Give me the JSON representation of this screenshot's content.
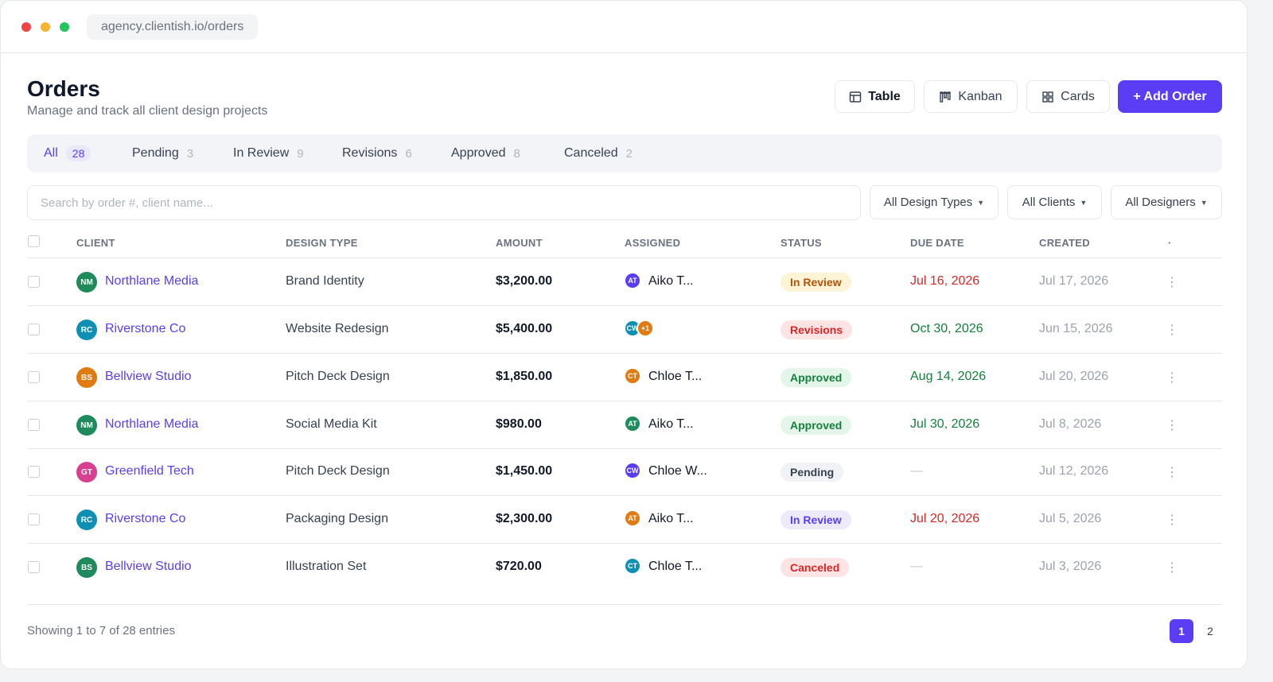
{
  "browser": {
    "url": "agency.clientish.io/orders"
  },
  "header": {
    "title": "Orders",
    "subtitle": "Manage and track all client design projects",
    "views": [
      {
        "label": "Table",
        "icon": "table-icon",
        "active": true
      },
      {
        "label": "Kanban",
        "icon": "kanban-icon",
        "active": false
      },
      {
        "label": "Cards",
        "icon": "grid-icon",
        "active": false
      }
    ],
    "add_label": "+ Add Order"
  },
  "tabs": [
    {
      "label": "All",
      "count": "28",
      "active": true
    },
    {
      "label": "Pending",
      "count": "3"
    },
    {
      "label": "In Review",
      "count": "9"
    },
    {
      "label": "Revisions",
      "count": "6"
    },
    {
      "label": "Approved",
      "count": "8"
    },
    {
      "label": "Canceled",
      "count": "2"
    }
  ],
  "search": {
    "placeholder": "Search by order #, client name...",
    "value": ""
  },
  "filters": [
    "All Design Types",
    "All Clients",
    "All Designers"
  ],
  "table": {
    "columns": [
      "CLIENT",
      "DESIGN TYPE",
      "AMOUNT",
      "ASSIGNED",
      "STATUS",
      "DUE DATE",
      "CREATED"
    ],
    "more_column": "·",
    "rows": [
      {
        "initials": "NM",
        "client": "Northlane Media",
        "design_type": "Brand Identity",
        "amount": "$3,200.00",
        "assignee_initials": "AT",
        "assignee": "Aiko T...",
        "status": "In Review",
        "due": "Jul 16, 2026",
        "created": "Jul 17, 2026"
      },
      {
        "initials": "RC",
        "client": "Riverstone Co",
        "design_type": "Website Redesign",
        "amount": "$5,400.00",
        "assignee_initials": "CW",
        "extra_assignees": "+1",
        "assignee": "",
        "status": "Revisions",
        "due": "Oct 30, 2026",
        "created": "Jun 15, 2026"
      },
      {
        "initials": "BS",
        "client": "Bellview Studio",
        "design_type": "Pitch Deck Design",
        "amount": "$1,850.00",
        "assignee_initials": "CT",
        "assignee": "Chloe T...",
        "status": "Approved",
        "due": "Aug 14, 2026",
        "created": "Jul 20, 2026"
      },
      {
        "initials": "NM",
        "client": "Northlane Media",
        "design_type": "Social Media Kit",
        "amount": "$980.00",
        "assignee_initials": "AT",
        "assignee": "Aiko T...",
        "status": "Approved",
        "due": "Jul 30, 2026",
        "created": "Jul 8, 2026"
      },
      {
        "initials": "GT",
        "client": "Greenfield Tech",
        "design_type": "Pitch Deck Design",
        "amount": "$1,450.00",
        "assignee_initials": "CW",
        "assignee": "Chloe W...",
        "status": "Pending",
        "due": "—",
        "created": "Jul 12, 2026"
      },
      {
        "initials": "RC",
        "client": "Riverstone Co",
        "design_type": "Packaging Design",
        "amount": "$2,300.00",
        "assignee_initials": "AT",
        "assignee": "Aiko T...",
        "status": "In Review",
        "due": "Jul 20, 2026",
        "created": "Jul 5, 2026"
      },
      {
        "initials": "BS",
        "client": "Bellview Studio",
        "design_type": "Illustration Set",
        "amount": "$720.00",
        "assignee_initials": "CT",
        "assignee": "Chloe T...",
        "status": "Canceled",
        "due": "—",
        "created": "Jul 3, 2026"
      }
    ]
  },
  "footer": {
    "showing": "Showing 1 to 7 of 28 entries",
    "pages": [
      "1",
      "2"
    ],
    "current_page": "1"
  },
  "colors": {
    "accent": "#5b3df5",
    "overdue_due": "#dc2626",
    "ontrack_due": "#15803d",
    "avatar_green": "#1f8a5b",
    "avatar_teal": "#0e90b4",
    "avatar_orange": "#e07b12",
    "avatar_pink": "#d6408f",
    "avatar_purple": "#5b3df5"
  }
}
